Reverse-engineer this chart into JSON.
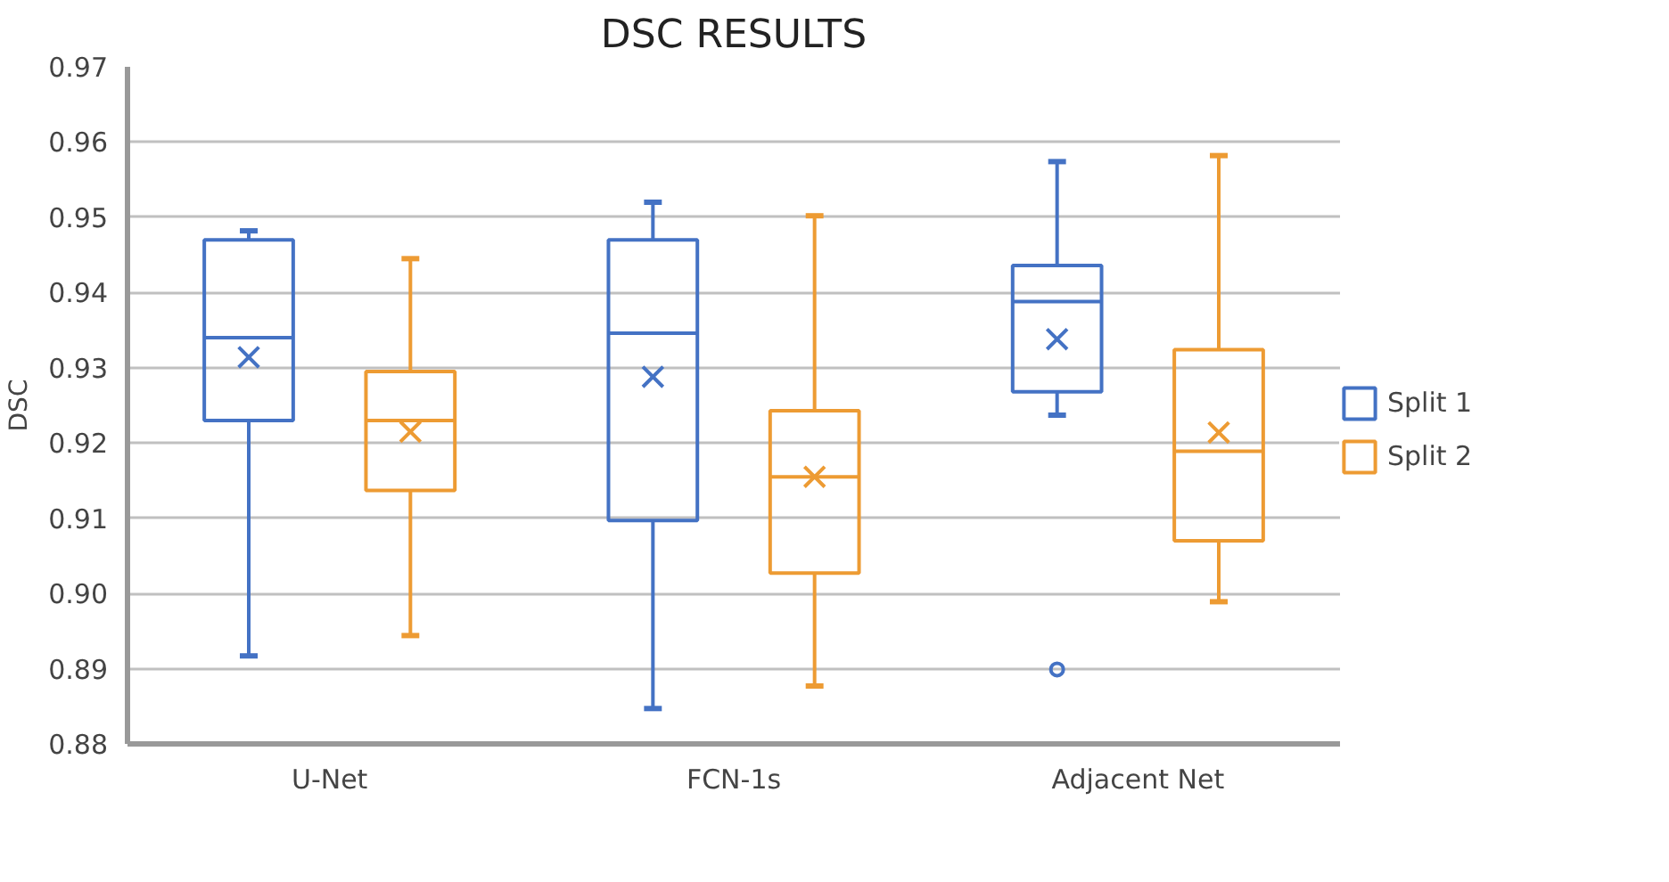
{
  "chart_data": {
    "type": "box",
    "title": "DSC RESULTS",
    "ylabel": "DSC",
    "categories": [
      "U-Net",
      "FCN-1s",
      "Adjacent Net"
    ],
    "series": [
      {
        "name": "Split 1",
        "color": "#4472c4",
        "boxes": [
          {
            "low": 0.8917,
            "q1": 0.923,
            "median": 0.934,
            "q3": 0.947,
            "high": 0.9482,
            "mean": 0.9314
          },
          {
            "low": 0.8847,
            "q1": 0.9097,
            "median": 0.9346,
            "q3": 0.947,
            "high": 0.952,
            "mean": 0.9288
          },
          {
            "low": 0.9237,
            "q1": 0.9268,
            "median": 0.9388,
            "q3": 0.9436,
            "high": 0.9574,
            "mean": 0.9338,
            "outliers": [
              0.8899
            ]
          }
        ]
      },
      {
        "name": "Split 2",
        "color": "#ed9b33",
        "boxes": [
          {
            "low": 0.8944,
            "q1": 0.9137,
            "median": 0.923,
            "q3": 0.9295,
            "high": 0.9445,
            "mean": 0.9215
          },
          {
            "low": 0.8877,
            "q1": 0.9027,
            "median": 0.9155,
            "q3": 0.9243,
            "high": 0.9502,
            "mean": 0.9155
          },
          {
            "low": 0.8989,
            "q1": 0.907,
            "median": 0.9189,
            "q3": 0.9324,
            "high": 0.9582,
            "mean": 0.9214
          }
        ]
      }
    ],
    "ylim": [
      0.88,
      0.97
    ],
    "yticks": [
      0.88,
      0.89,
      {
        "value": 0.9,
        "label": "0.90"
      },
      0.91,
      0.92,
      0.93,
      0.94,
      0.95,
      0.96,
      0.97
    ],
    "grid": "y",
    "legend": "right"
  }
}
